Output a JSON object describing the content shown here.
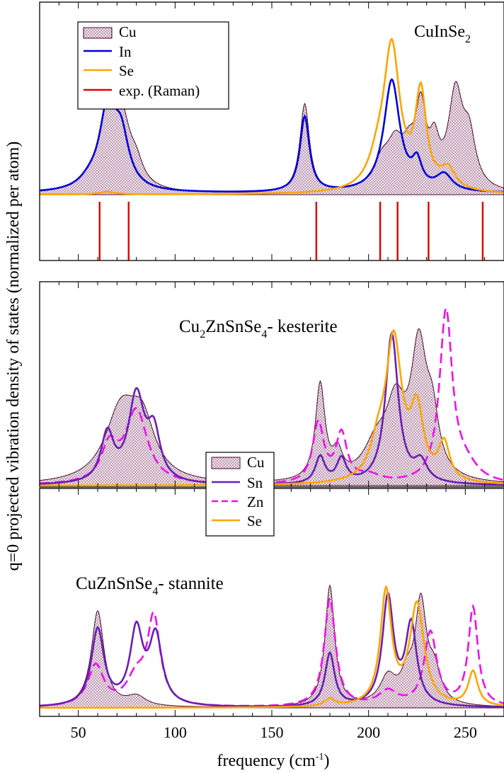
{
  "figure": {
    "ylabel": "q=0 projected vibration density of states (normalized per atom)",
    "xlabel_main": "frequency (cm",
    "xlabel_sup": "-1",
    "xlabel_end": ")"
  },
  "colors": {
    "Cu_fill": "#b58fa8",
    "Cu_line": "#4a0a2a",
    "In": "#0000dd",
    "Se": "#ffa500",
    "Raman": "#e00000",
    "Sn": "#6a1fb5",
    "Zn": "#ee10ee"
  },
  "chart_data": [
    {
      "type": "line",
      "title": "CuInSe",
      "title_sub": "2",
      "xlim": [
        30,
        270
      ],
      "x_ticks": [
        50,
        100,
        150,
        200,
        250
      ],
      "x_tick_labels": [],
      "legend": [
        "Cu",
        "In",
        "Se",
        "exp. (Raman)"
      ],
      "legend_position": "top-left",
      "series": [
        {
          "name": "Cu",
          "style": "filled",
          "peaks": [
            [
              56,
              0.05,
              8
            ],
            [
              65,
              0.48,
              5
            ],
            [
              72,
              0.52,
              6
            ],
            [
              80,
              0.12,
              4
            ],
            [
              167,
              0.66,
              3
            ],
            [
              207,
              0.2,
              6
            ],
            [
              214,
              0.28,
              5
            ],
            [
              221,
              0.22,
              4
            ],
            [
              227,
              0.55,
              3.2
            ],
            [
              234,
              0.28,
              3
            ],
            [
              245,
              0.7,
              4.5
            ],
            [
              252,
              0.35,
              4
            ]
          ],
          "base": 0.0
        },
        {
          "name": "In",
          "style": "solid",
          "peaks": [
            [
              56,
              0.06,
              7
            ],
            [
              65,
              0.56,
              5
            ],
            [
              72,
              0.38,
              5
            ],
            [
              167,
              0.56,
              3
            ],
            [
              212,
              0.83,
              5
            ],
            [
              225,
              0.18,
              3
            ],
            [
              239,
              0.12,
              5
            ]
          ],
          "base": 0.01
        },
        {
          "name": "Se",
          "style": "solid",
          "peaks": [
            [
              65,
              0.02,
              5
            ],
            [
              205,
              0.18,
              6
            ],
            [
              212,
              1.04,
              5
            ],
            [
              227,
              0.7,
              3.5
            ],
            [
              241,
              0.15,
              5
            ]
          ],
          "base": 0.0
        }
      ],
      "raman_lines": [
        61,
        76,
        173,
        206,
        215,
        231,
        259
      ]
    },
    {
      "type": "line",
      "title": "Cu",
      "title_parts": [
        "Cu",
        "2",
        "ZnSnSe",
        "4",
        "- kesterite"
      ],
      "xlim": [
        30,
        270
      ],
      "x_ticks": [
        50,
        100,
        150,
        200,
        250
      ],
      "x_tick_labels": [],
      "legend": [
        "Cu",
        "Sn",
        "Zn",
        "Se"
      ],
      "series": [
        {
          "name": "Cu",
          "style": "filled",
          "peaks": [
            [
              72,
              0.52,
              10
            ],
            [
              83,
              0.4,
              8
            ],
            [
              175,
              0.72,
              3
            ],
            [
              184,
              0.18,
              3
            ],
            [
              204,
              0.25,
              8
            ],
            [
              214,
              0.5,
              6
            ],
            [
              226,
              0.95,
              5
            ],
            [
              233,
              0.38,
              4
            ]
          ],
          "base": 0.0
        },
        {
          "name": "Sn",
          "style": "solid",
          "peaks": [
            [
              65,
              0.36,
              4
            ],
            [
              80,
              0.65,
              5
            ],
            [
              89,
              0.35,
              4
            ],
            [
              175,
              0.2,
              3
            ],
            [
              186,
              0.18,
              3
            ],
            [
              212,
              1.13,
              4
            ],
            [
              227,
              0.15,
              4
            ]
          ],
          "base": 0.0
        },
        {
          "name": "Zn",
          "style": "dashed",
          "peaks": [
            [
              66,
              0.26,
              5
            ],
            [
              80,
              0.55,
              7
            ],
            [
              174,
              0.45,
              3.5
            ],
            [
              186,
              0.36,
              3.5
            ],
            [
              200,
              0.06,
              8
            ],
            [
              240,
              1.28,
              4
            ],
            [
              250,
              0.12,
              8
            ]
          ],
          "base": 0.0
        },
        {
          "name": "Se",
          "style": "solid",
          "peaks": [
            [
              205,
              0.22,
              5
            ],
            [
              213,
              1.05,
              5
            ],
            [
              225,
              0.5,
              4
            ],
            [
              239,
              0.28,
              3.5
            ]
          ],
          "base": 0.0
        }
      ]
    },
    {
      "type": "line",
      "title": "CuZnSnSe",
      "title_parts": [
        "CuZnSnSe",
        "4",
        "- stannite"
      ],
      "xlim": [
        30,
        270
      ],
      "x_ticks": [
        50,
        100,
        150,
        200,
        250
      ],
      "x_tick_labels": [
        "50",
        "100",
        "150",
        "200",
        "250"
      ],
      "series": [
        {
          "name": "Cu",
          "style": "filled",
          "peaks": [
            [
              60,
              0.78,
              4
            ],
            [
              80,
              0.08,
              6
            ],
            [
              180,
              0.98,
              3
            ],
            [
              210,
              0.22,
              5
            ],
            [
              220,
              0.2,
              4
            ],
            [
              227,
              0.8,
              3.5
            ],
            [
              234,
              0.25,
              4
            ]
          ],
          "base": 0.0
        },
        {
          "name": "Sn",
          "style": "solid",
          "peaks": [
            [
              60,
              0.62,
              4
            ],
            [
              80,
              0.6,
              4
            ],
            [
              90,
              0.55,
              4
            ],
            [
              180,
              0.43,
              3
            ],
            [
              210,
              0.88,
              3.5
            ],
            [
              222,
              0.65,
              3.5
            ]
          ],
          "base": 0.0
        },
        {
          "name": "Zn",
          "style": "dashed",
          "peaks": [
            [
              59,
              0.33,
              5
            ],
            [
              80,
              0.22,
              6
            ],
            [
              89,
              0.7,
              4
            ],
            [
              180,
              0.88,
              3.5
            ],
            [
              210,
              0.12,
              6
            ],
            [
              232,
              0.6,
              4
            ],
            [
              254,
              0.8,
              3
            ]
          ],
          "base": 0.0
        },
        {
          "name": "Se",
          "style": "solid",
          "peaks": [
            [
              180,
              0.06,
              3
            ],
            [
              209,
              0.92,
              3.5
            ],
            [
              225,
              0.82,
              4.5
            ],
            [
              254,
              0.28,
              3
            ]
          ],
          "base": 0.0
        }
      ]
    }
  ]
}
